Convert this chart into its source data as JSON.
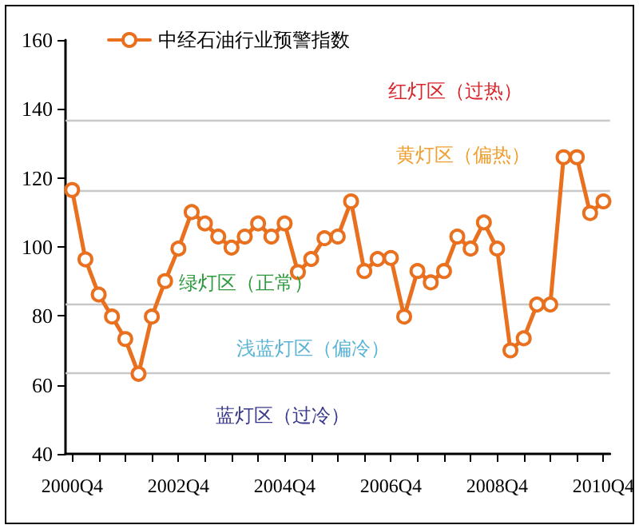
{
  "chart_data": {
    "type": "line",
    "categories": [
      "2000Q4",
      null,
      null,
      null,
      null,
      null,
      null,
      null,
      "2002Q4",
      null,
      null,
      null,
      null,
      null,
      null,
      null,
      "2004Q4",
      null,
      null,
      null,
      null,
      null,
      null,
      null,
      "2006Q4",
      null,
      null,
      null,
      null,
      null,
      null,
      null,
      "2008Q4",
      null,
      null,
      null,
      null,
      null,
      null,
      null,
      "2010Q4"
    ],
    "series": [
      {
        "name": "中经石油行业预警指数",
        "color": "#e8701e",
        "values": [
          116.5,
          96.4,
          86.2,
          79.8,
          73.3,
          63.2,
          79.8,
          90.1,
          99.5,
          110.1,
          106.8,
          103,
          99.8,
          103,
          106.8,
          103,
          106.8,
          92.7,
          96.5,
          102.5,
          103,
          113.2,
          93,
          96.5,
          96.8,
          79.8,
          93,
          89.7,
          93,
          103,
          99.5,
          107.1,
          99.5,
          70,
          73.5,
          83.3,
          83.3,
          126,
          126,
          109.8,
          113.2
        ]
      }
    ],
    "ylim": [
      40,
      160
    ],
    "yticks": [
      40,
      60,
      80,
      100,
      120,
      140,
      160
    ],
    "marker": "circle",
    "line_style": "solid",
    "legend": "top left",
    "grid": false,
    "ref_lines": [
      {
        "axis": "y",
        "value": 136.5,
        "color": "#c8c8c8"
      },
      {
        "axis": "y",
        "value": 116.5,
        "color": "#c8c8c8"
      },
      {
        "axis": "y",
        "value": 83.5,
        "color": "#c8c8c8"
      },
      {
        "axis": "y",
        "value": 63.5,
        "color": "#c8c8c8"
      }
    ],
    "annotations": [
      "红灯区（过热）",
      "黄灯区（偏热）",
      "绿灯区（正常）",
      "浅蓝灯区（偏冷）",
      "蓝灯区（过冷）"
    ]
  }
}
